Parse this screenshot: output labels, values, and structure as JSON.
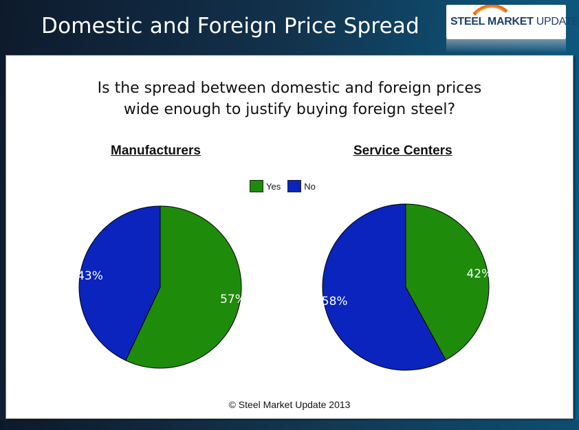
{
  "header": {
    "title": "Domestic and Foreign Price Spread",
    "logo_text_bold": "STEEL MARKET",
    "logo_text_regular": " UPDATE"
  },
  "panel": {
    "question_line1": "Is the spread between domestic and foreign prices",
    "question_line2": "wide enough to justify buying foreign steel?",
    "copyright": "© Steel Market Update 2013"
  },
  "colors": {
    "yes": "#1f8b0b",
    "no": "#0b24bd",
    "label_text": "#ffffff"
  },
  "chart_data": [
    {
      "type": "pie",
      "title": "Manufacturers",
      "categories": [
        "Yes",
        "No"
      ],
      "values": [
        57,
        43
      ],
      "labels": [
        "57%",
        "43%"
      ],
      "legend": "top"
    },
    {
      "type": "pie",
      "title": "Service Centers",
      "categories": [
        "Yes",
        "No"
      ],
      "values": [
        42,
        58
      ],
      "labels": [
        "42%",
        "58%"
      ],
      "legend": "top"
    }
  ],
  "legend": {
    "items": [
      {
        "label": "Yes",
        "color": "#1f8b0b"
      },
      {
        "label": "No",
        "color": "#0b24bd"
      }
    ]
  }
}
